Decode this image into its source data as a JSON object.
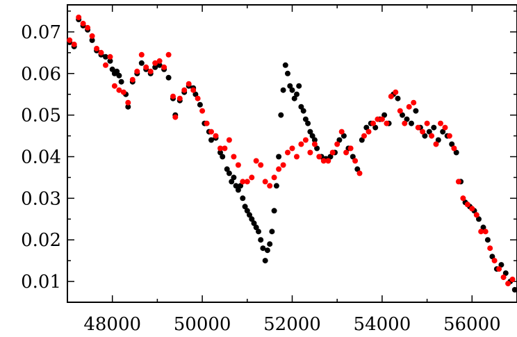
{
  "chart_data": {
    "type": "scatter",
    "title": "",
    "xlabel": "",
    "ylabel": "",
    "xlim": [
      47000,
      57000
    ],
    "ylim": [
      0.005,
      0.0765
    ],
    "x_ticks": [
      48000,
      50000,
      52000,
      54000,
      56000
    ],
    "x_tick_labels": [
      "48000",
      "50000",
      "52000",
      "54000",
      "56000"
    ],
    "y_ticks": [
      0.01,
      0.02,
      0.03,
      0.04,
      0.05,
      0.06,
      0.07
    ],
    "y_tick_labels": [
      "0.01",
      "0.02",
      "0.03",
      "0.04",
      "0.05",
      "0.06",
      "0.07"
    ],
    "grid": false,
    "legend": "none",
    "series": [
      {
        "color": "#000000",
        "points": [
          [
            47050,
            0.0675
          ],
          [
            47150,
            0.0665
          ],
          [
            47250,
            0.073
          ],
          [
            47350,
            0.0715
          ],
          [
            47450,
            0.0705
          ],
          [
            47550,
            0.068
          ],
          [
            47650,
            0.0655
          ],
          [
            47750,
            0.0645
          ],
          [
            47850,
            0.064
          ],
          [
            47950,
            0.063
          ],
          [
            48000,
            0.061
          ],
          [
            48050,
            0.06
          ],
          [
            48100,
            0.0605
          ],
          [
            48150,
            0.0595
          ],
          [
            48200,
            0.058
          ],
          [
            48300,
            0.055
          ],
          [
            48350,
            0.052
          ],
          [
            48450,
            0.058
          ],
          [
            48550,
            0.06
          ],
          [
            48650,
            0.0625
          ],
          [
            48750,
            0.061
          ],
          [
            48850,
            0.06
          ],
          [
            48950,
            0.0615
          ],
          [
            49050,
            0.062
          ],
          [
            49150,
            0.061
          ],
          [
            49250,
            0.059
          ],
          [
            49350,
            0.054
          ],
          [
            49400,
            0.05
          ],
          [
            49500,
            0.0535
          ],
          [
            49600,
            0.0555
          ],
          [
            49700,
            0.057
          ],
          [
            49800,
            0.0565
          ],
          [
            49850,
            0.055
          ],
          [
            49950,
            0.0525
          ],
          [
            50050,
            0.048
          ],
          [
            50150,
            0.046
          ],
          [
            50200,
            0.044
          ],
          [
            50300,
            0.0445
          ],
          [
            50400,
            0.041
          ],
          [
            50450,
            0.04
          ],
          [
            50550,
            0.037
          ],
          [
            50600,
            0.036
          ],
          [
            50650,
            0.034
          ],
          [
            50700,
            0.035
          ],
          [
            50750,
            0.033
          ],
          [
            50800,
            0.032
          ],
          [
            50850,
            0.033
          ],
          [
            50900,
            0.03
          ],
          [
            50950,
            0.028
          ],
          [
            51000,
            0.027
          ],
          [
            51050,
            0.026
          ],
          [
            51100,
            0.025
          ],
          [
            51150,
            0.024
          ],
          [
            51200,
            0.023
          ],
          [
            51250,
            0.022
          ],
          [
            51300,
            0.02
          ],
          [
            51350,
            0.018
          ],
          [
            51400,
            0.015
          ],
          [
            51450,
            0.0175
          ],
          [
            51500,
            0.019
          ],
          [
            51550,
            0.022
          ],
          [
            51600,
            0.027
          ],
          [
            51650,
            0.033
          ],
          [
            51700,
            0.04
          ],
          [
            51750,
            0.05
          ],
          [
            51800,
            0.056
          ],
          [
            51850,
            0.062
          ],
          [
            51900,
            0.06
          ],
          [
            51950,
            0.057
          ],
          [
            52000,
            0.056
          ],
          [
            52050,
            0.054
          ],
          [
            52100,
            0.055
          ],
          [
            52150,
            0.057
          ],
          [
            52200,
            0.052
          ],
          [
            52250,
            0.051
          ],
          [
            52300,
            0.049
          ],
          [
            52350,
            0.048
          ],
          [
            52400,
            0.046
          ],
          [
            52450,
            0.045
          ],
          [
            52500,
            0.044
          ],
          [
            52550,
            0.042
          ],
          [
            52650,
            0.04
          ],
          [
            52750,
            0.0395
          ],
          [
            52850,
            0.04
          ],
          [
            52950,
            0.041
          ],
          [
            53050,
            0.044
          ],
          [
            53150,
            0.045
          ],
          [
            53250,
            0.042
          ],
          [
            53350,
            0.04
          ],
          [
            53450,
            0.037
          ],
          [
            53550,
            0.044
          ],
          [
            53650,
            0.047
          ],
          [
            53750,
            0.048
          ],
          [
            53850,
            0.047
          ],
          [
            53950,
            0.049
          ],
          [
            54050,
            0.05
          ],
          [
            54150,
            0.048
          ],
          [
            54250,
            0.055
          ],
          [
            54350,
            0.054
          ],
          [
            54450,
            0.05
          ],
          [
            54550,
            0.049
          ],
          [
            54650,
            0.048
          ],
          [
            54750,
            0.051
          ],
          [
            54850,
            0.047
          ],
          [
            54950,
            0.045
          ],
          [
            55050,
            0.046
          ],
          [
            55150,
            0.047
          ],
          [
            55250,
            0.044
          ],
          [
            55350,
            0.046
          ],
          [
            55450,
            0.045
          ],
          [
            55550,
            0.043
          ],
          [
            55650,
            0.041
          ],
          [
            55750,
            0.034
          ],
          [
            55850,
            0.029
          ],
          [
            55950,
            0.028
          ],
          [
            56050,
            0.027
          ],
          [
            56150,
            0.025
          ],
          [
            56250,
            0.023
          ],
          [
            56350,
            0.02
          ],
          [
            56450,
            0.016
          ],
          [
            56550,
            0.013
          ],
          [
            56650,
            0.014
          ],
          [
            56750,
            0.012
          ],
          [
            56850,
            0.01
          ],
          [
            56950,
            0.008
          ]
        ]
      },
      {
        "color": "#ff0000",
        "points": [
          [
            47050,
            0.068
          ],
          [
            47150,
            0.067
          ],
          [
            47250,
            0.0735
          ],
          [
            47350,
            0.072
          ],
          [
            47450,
            0.071
          ],
          [
            47550,
            0.069
          ],
          [
            47650,
            0.066
          ],
          [
            47750,
            0.065
          ],
          [
            47850,
            0.062
          ],
          [
            47950,
            0.064
          ],
          [
            48050,
            0.057
          ],
          [
            48150,
            0.056
          ],
          [
            48250,
            0.0555
          ],
          [
            48350,
            0.053
          ],
          [
            48450,
            0.0585
          ],
          [
            48550,
            0.0605
          ],
          [
            48650,
            0.0645
          ],
          [
            48750,
            0.0615
          ],
          [
            48850,
            0.0605
          ],
          [
            48950,
            0.0625
          ],
          [
            49050,
            0.063
          ],
          [
            49150,
            0.0615
          ],
          [
            49250,
            0.0645
          ],
          [
            49350,
            0.0545
          ],
          [
            49400,
            0.0495
          ],
          [
            49500,
            0.054
          ],
          [
            49600,
            0.056
          ],
          [
            49700,
            0.0575
          ],
          [
            49800,
            0.056
          ],
          [
            49900,
            0.054
          ],
          [
            50000,
            0.051
          ],
          [
            50100,
            0.048
          ],
          [
            50200,
            0.046
          ],
          [
            50300,
            0.045
          ],
          [
            50400,
            0.042
          ],
          [
            50500,
            0.042
          ],
          [
            50600,
            0.044
          ],
          [
            50700,
            0.04
          ],
          [
            50800,
            0.038
          ],
          [
            50900,
            0.034
          ],
          [
            51000,
            0.034
          ],
          [
            51100,
            0.035
          ],
          [
            51200,
            0.039
          ],
          [
            51300,
            0.038
          ],
          [
            51400,
            0.034
          ],
          [
            51500,
            0.033
          ],
          [
            51600,
            0.035
          ],
          [
            51700,
            0.037
          ],
          [
            51800,
            0.038
          ],
          [
            51900,
            0.041
          ],
          [
            52000,
            0.042
          ],
          [
            52100,
            0.04
          ],
          [
            52200,
            0.043
          ],
          [
            52300,
            0.044
          ],
          [
            52400,
            0.041
          ],
          [
            52500,
            0.043
          ],
          [
            52600,
            0.04
          ],
          [
            52700,
            0.039
          ],
          [
            52800,
            0.039
          ],
          [
            52900,
            0.041
          ],
          [
            53000,
            0.043
          ],
          [
            53100,
            0.046
          ],
          [
            53200,
            0.041
          ],
          [
            53300,
            0.042
          ],
          [
            53400,
            0.039
          ],
          [
            53500,
            0.036
          ],
          [
            53600,
            0.045
          ],
          [
            53700,
            0.046
          ],
          [
            53800,
            0.048
          ],
          [
            53900,
            0.049
          ],
          [
            54000,
            0.049
          ],
          [
            54100,
            0.048
          ],
          [
            54200,
            0.0545
          ],
          [
            54300,
            0.0555
          ],
          [
            54400,
            0.051
          ],
          [
            54500,
            0.048
          ],
          [
            54600,
            0.052
          ],
          [
            54700,
            0.053
          ],
          [
            54800,
            0.047
          ],
          [
            54900,
            0.046
          ],
          [
            55000,
            0.048
          ],
          [
            55100,
            0.045
          ],
          [
            55200,
            0.043
          ],
          [
            55300,
            0.048
          ],
          [
            55400,
            0.047
          ],
          [
            55500,
            0.045
          ],
          [
            55600,
            0.042
          ],
          [
            55700,
            0.034
          ],
          [
            55800,
            0.03
          ],
          [
            55900,
            0.0285
          ],
          [
            56000,
            0.0275
          ],
          [
            56100,
            0.026
          ],
          [
            56200,
            0.022
          ],
          [
            56300,
            0.022
          ],
          [
            56400,
            0.018
          ],
          [
            56500,
            0.015
          ],
          [
            56600,
            0.013
          ],
          [
            56700,
            0.011
          ],
          [
            56800,
            0.0095
          ],
          [
            56900,
            0.0105
          ]
        ]
      }
    ]
  }
}
